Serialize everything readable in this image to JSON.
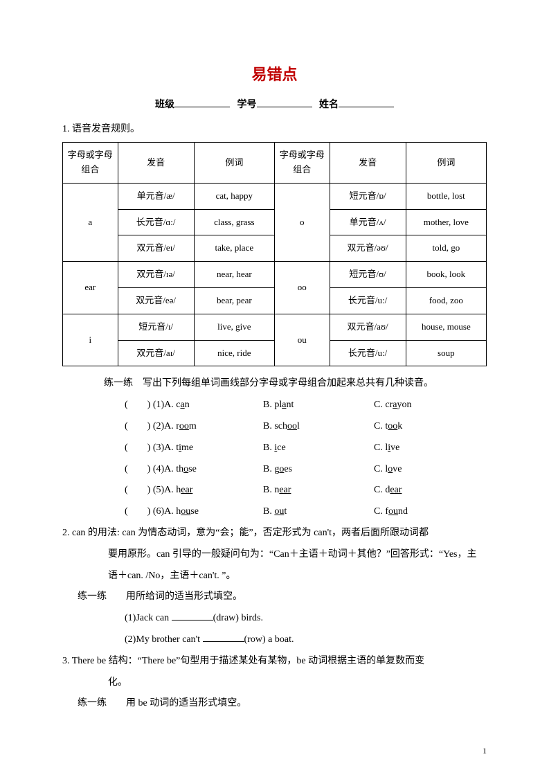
{
  "title": "易错点",
  "title_color": "#c00000",
  "header": {
    "class_label": "班级",
    "id_label": "学号",
    "name_label": "姓名"
  },
  "section1": {
    "heading": "1. 语音发音规则。",
    "table": {
      "headers": {
        "letter": "字母或字母组合",
        "sound": "发音",
        "example": "例词"
      },
      "rows_left": [
        {
          "letter": "a",
          "span": 3,
          "cells": [
            {
              "sound": "单元音/æ/",
              "ex": "cat, happy"
            },
            {
              "sound": "长元音/ɑ:/",
              "ex": "class, grass"
            },
            {
              "sound": "双元音/eɪ/",
              "ex": "take, place"
            }
          ]
        },
        {
          "letter": "ear",
          "span": 2,
          "cells": [
            {
              "sound": "双元音/ɪə/",
              "ex": "near, hear"
            },
            {
              "sound": "双元音/eə/",
              "ex": "bear, pear"
            }
          ]
        },
        {
          "letter": "i",
          "span": 2,
          "cells": [
            {
              "sound": "短元音/ɪ/",
              "ex": "live, give"
            },
            {
              "sound": "双元音/aɪ/",
              "ex": "nice, ride"
            }
          ]
        }
      ],
      "rows_right": [
        {
          "letter": "o",
          "span": 3,
          "cells": [
            {
              "sound": "短元音/ɒ/",
              "ex": "bottle, lost"
            },
            {
              "sound": "单元音/ʌ/",
              "ex": "mother, love"
            },
            {
              "sound": "双元音/əʊ/",
              "ex": "told, go"
            }
          ]
        },
        {
          "letter": "oo",
          "span": 2,
          "cells": [
            {
              "sound": "短元音/ʊ/",
              "ex": "book, look"
            },
            {
              "sound": "长元音/u:/",
              "ex": "food, zoo"
            }
          ]
        },
        {
          "letter": "ou",
          "span": 2,
          "cells": [
            {
              "sound": "双元音/aʊ/",
              "ex": "house, mouse"
            },
            {
              "sound": "长元音/u:/",
              "ex": "soup"
            }
          ]
        }
      ]
    },
    "practice_intro": "练一练　写出下列每组单词画线部分字母或字母组合加起来总共有几种读音。",
    "practice": [
      {
        "n": "(1)",
        "a_pre": "A. c",
        "a_u": "a",
        "a_post": "n",
        "b_pre": "B. pl",
        "b_u": "a",
        "b_post": "nt",
        "c_pre": "C. cr",
        "c_u": "a",
        "c_post": "yon"
      },
      {
        "n": "(2)",
        "a_pre": "A. r",
        "a_u": "oo",
        "a_post": "m",
        "b_pre": "B. sch",
        "b_u": "oo",
        "b_post": "l",
        "c_pre": "C. t",
        "c_u": "oo",
        "c_post": "k"
      },
      {
        "n": "(3)",
        "a_pre": "A. t",
        "a_u": "i",
        "a_post": "me",
        "b_pre": "B. ",
        "b_u": "i",
        "b_post": "ce",
        "c_pre": "C. l",
        "c_u": "i",
        "c_post": "ve"
      },
      {
        "n": "(4)",
        "a_pre": "A. th",
        "a_u": "o",
        "a_post": "se",
        "b_pre": "B. g",
        "b_u": "o",
        "b_post": "es",
        "c_pre": "C. l",
        "c_u": "o",
        "c_post": "ve"
      },
      {
        "n": "(5)",
        "a_pre": "A. h",
        "a_u": "ear",
        "a_post": "",
        "b_pre": "B. n",
        "b_u": "ear",
        "b_post": "",
        "c_pre": "C. d",
        "c_u": "ear",
        "c_post": ""
      },
      {
        "n": "(6)",
        "a_pre": "A. h",
        "a_u": "ou",
        "a_post": "se",
        "b_pre": "B. ",
        "b_u": "ou",
        "b_post": "t",
        "c_pre": "C. f",
        "c_u": "ou",
        "c_post": "nd"
      }
    ]
  },
  "section2": {
    "text1": "2. can 的用法: can 为情态动词，意为“会；能”，否定形式为 can't，两者后面所跟动词都",
    "text2": "要用原形。can 引导的一般疑问句为：“Can＋主语＋动词＋其他？”回答形式：“Yes，主",
    "text3": "语＋can. /No，主语＋can't. ”。",
    "prac_label": "练一练　　用所给词的适当形式填空。",
    "q1_pre": "(1)Jack can ",
    "q1_post": "(draw) birds.",
    "q2_pre": "(2)My brother can't ",
    "q2_post": "(row) a boat."
  },
  "section3": {
    "text1": "3. There be 结构：“There be”句型用于描述某处有某物，be 动词根据主语的单复数而变",
    "text2": "化。",
    "prac_label": "练一练　　用 be 动词的适当形式填空。"
  },
  "page_number": "1"
}
